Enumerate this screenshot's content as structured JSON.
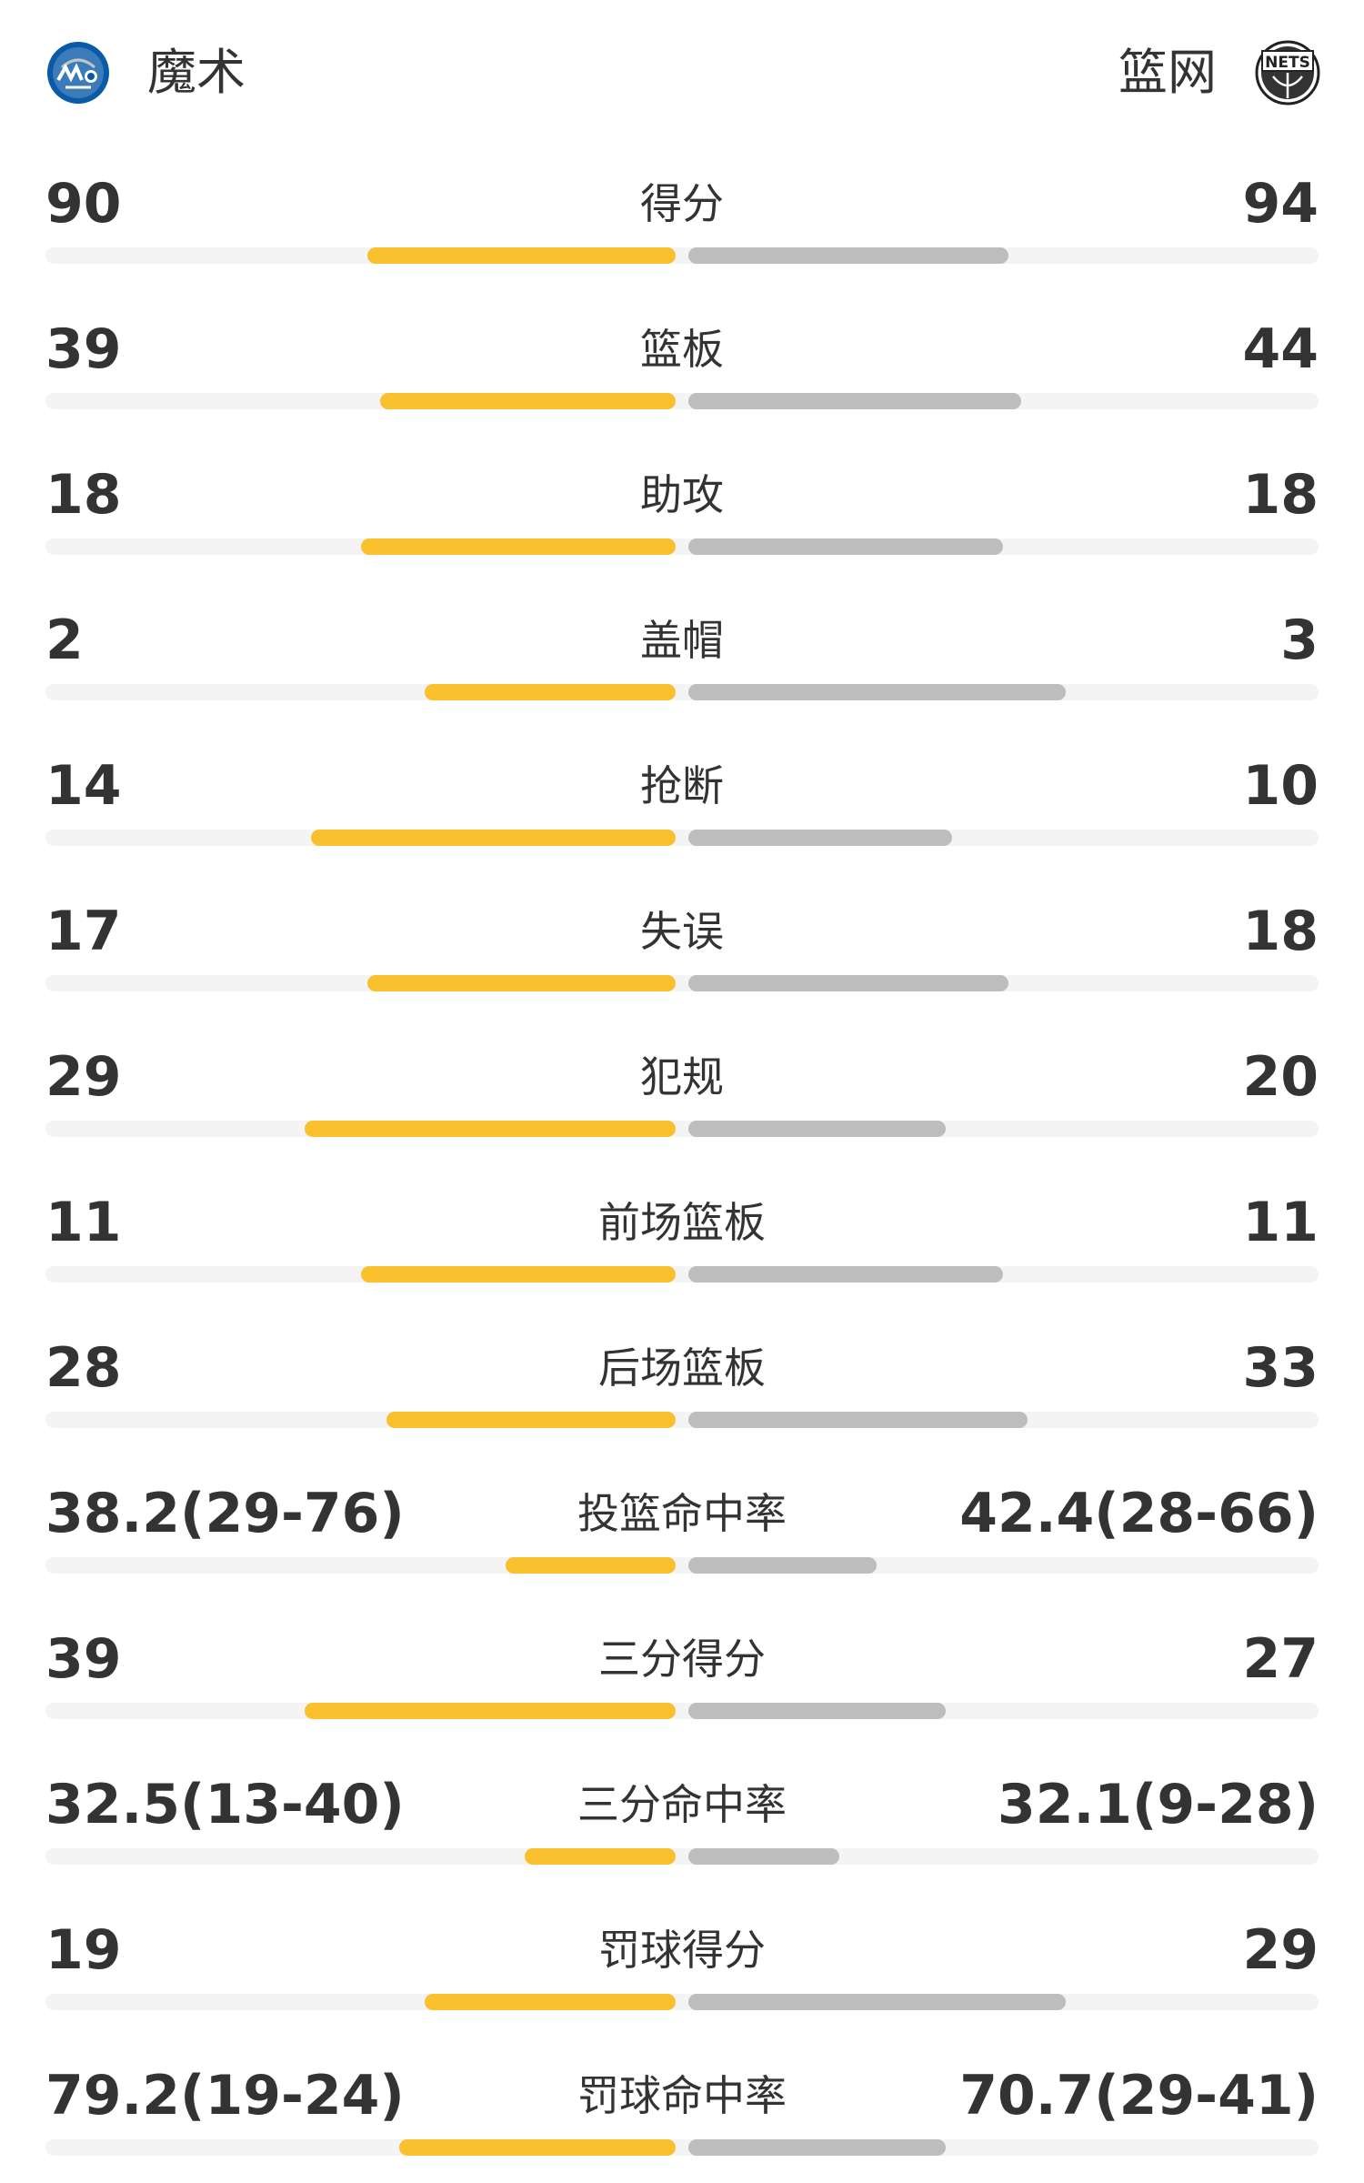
{
  "header": {
    "home_team": "魔术",
    "away_team": "篮网",
    "home_logo_icon": "orlando-magic-logo-icon",
    "away_logo_icon": "brooklyn-nets-logo-icon",
    "away_logo_text": "NETS"
  },
  "colors": {
    "home_bar": "#fbc02d",
    "away_bar": "#bdbdbd",
    "track": "#f4f4f4"
  },
  "stats": [
    {
      "label": "得分",
      "home": "90",
      "away": "94",
      "home_share": 0.49,
      "away_share": 0.51
    },
    {
      "label": "篮板",
      "home": "39",
      "away": "44",
      "home_share": 0.47,
      "away_share": 0.53
    },
    {
      "label": "助攻",
      "home": "18",
      "away": "18",
      "home_share": 0.5,
      "away_share": 0.5
    },
    {
      "label": "盖帽",
      "home": "2",
      "away": "3",
      "home_share": 0.4,
      "away_share": 0.6
    },
    {
      "label": "抢断",
      "home": "14",
      "away": "10",
      "home_share": 0.58,
      "away_share": 0.42
    },
    {
      "label": "失误",
      "home": "17",
      "away": "18",
      "home_share": 0.49,
      "away_share": 0.51
    },
    {
      "label": "犯规",
      "home": "29",
      "away": "20",
      "home_share": 0.59,
      "away_share": 0.41
    },
    {
      "label": "前场篮板",
      "home": "11",
      "away": "11",
      "home_share": 0.5,
      "away_share": 0.5
    },
    {
      "label": "后场篮板",
      "home": "28",
      "away": "33",
      "home_share": 0.46,
      "away_share": 0.54
    },
    {
      "label": "投篮命中率",
      "home": "38.2(29-76)",
      "away": "42.4(28-66)",
      "home_share": 0.27,
      "away_share": 0.3
    },
    {
      "label": "三分得分",
      "home": "39",
      "away": "27",
      "home_share": 0.59,
      "away_share": 0.41
    },
    {
      "label": "三分命中率",
      "home": "32.5(13-40)",
      "away": "32.1(9-28)",
      "home_share": 0.24,
      "away_share": 0.24
    },
    {
      "label": "罚球得分",
      "home": "19",
      "away": "29",
      "home_share": 0.4,
      "away_share": 0.6
    },
    {
      "label": "罚球命中率",
      "home": "79.2(19-24)",
      "away": "70.7(29-41)",
      "home_share": 0.44,
      "away_share": 0.41
    }
  ]
}
